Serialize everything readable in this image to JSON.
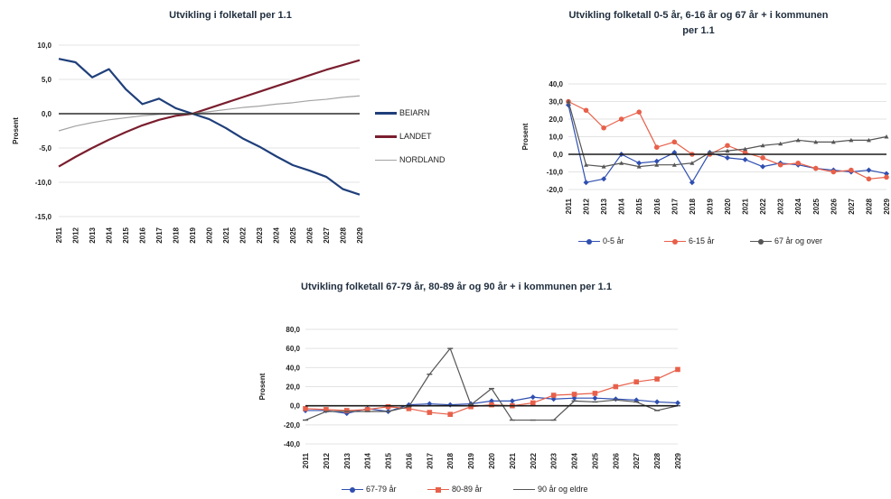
{
  "chart_data": [
    {
      "type": "line",
      "title": "Utvikling i folketall per 1.1",
      "xlabel": "",
      "ylabel": "Prosent",
      "x": [
        "2011",
        "2012",
        "2013",
        "2014",
        "2015",
        "2016",
        "2017",
        "2018",
        "2019",
        "2020",
        "2021",
        "2022",
        "2023",
        "2024",
        "2025",
        "2026",
        "2027",
        "2028",
        "2029"
      ],
      "yticks": [
        "10,0",
        "5,0",
        "0,0",
        "-5,0",
        "-10,0",
        "-15,0"
      ],
      "ylim": [
        -15,
        10
      ],
      "grid": true,
      "legend_position": "right",
      "series": [
        {
          "name": "BEIARN",
          "color": "#1f3f7a",
          "marker": "none",
          "values": [
            8.0,
            7.5,
            5.3,
            6.5,
            3.6,
            1.4,
            2.2,
            0.8,
            0.0,
            -0.8,
            -2.1,
            -3.6,
            -4.8,
            -6.2,
            -7.5,
            -8.3,
            -9.2,
            -11.0,
            -11.8
          ]
        },
        {
          "name": "LANDET",
          "color": "#7a1e2e",
          "marker": "none",
          "values": [
            -7.7,
            -6.3,
            -5.0,
            -3.8,
            -2.7,
            -1.7,
            -0.9,
            -0.3,
            0.0,
            0.8,
            1.6,
            2.4,
            3.2,
            4.0,
            4.8,
            5.6,
            6.4,
            7.1,
            7.8
          ]
        },
        {
          "name": "NORDLAND",
          "color": "#a3a3a3",
          "marker": "none",
          "values": [
            -2.5,
            -1.8,
            -1.3,
            -0.9,
            -0.6,
            -0.3,
            -0.1,
            -0.05,
            0.0,
            0.3,
            0.6,
            0.9,
            1.1,
            1.4,
            1.6,
            1.9,
            2.1,
            2.4,
            2.6
          ]
        },
        {
          "name": "",
          "color": "#2b2b2b",
          "marker": "none",
          "values": [
            0,
            0,
            0,
            0,
            0,
            0,
            0,
            0,
            0,
            0,
            0,
            0,
            0,
            0,
            0,
            0,
            0,
            0,
            0
          ]
        }
      ]
    },
    {
      "type": "line",
      "title": "Utvikling folketall 0-5 år, 6-16 år og 67 år + i kommunen per 1.1",
      "xlabel": "",
      "ylabel": "Prosent",
      "x": [
        "2011",
        "2012",
        "2013",
        "2014",
        "2015",
        "2016",
        "2017",
        "2018",
        "2019",
        "2020",
        "2021",
        "2022",
        "2023",
        "2024",
        "2025",
        "2026",
        "2027",
        "2028",
        "2029"
      ],
      "yticks": [
        "40,0",
        "30,0",
        "20,0",
        "10,0",
        "0,0",
        "-10,0",
        "-20,0"
      ],
      "ylim": [
        -20,
        40
      ],
      "grid": true,
      "legend_position": "bottom",
      "series": [
        {
          "name": "0-5 år",
          "color": "#2f4fb0",
          "marker": "diamond",
          "values": [
            28,
            -16,
            -14,
            0,
            -5,
            -4,
            1,
            -16,
            1,
            -2,
            -3,
            -7,
            -5,
            -6,
            -8,
            -9,
            -10,
            -9,
            -11
          ]
        },
        {
          "name": "6-15 år",
          "color": "#e8604a",
          "marker": "circle",
          "values": [
            30,
            25,
            15,
            20,
            24,
            4,
            7,
            0,
            0,
            5,
            1,
            -2,
            -6,
            -5,
            -8,
            -10,
            -9,
            -14,
            -13
          ]
        },
        {
          "name": "67 år og over",
          "color": "#555555",
          "marker": "triangle",
          "values": [
            30,
            -6,
            -7,
            -5,
            -7,
            -6,
            -6,
            -5,
            1,
            2,
            3,
            5,
            6,
            8,
            7,
            7,
            8,
            8,
            10
          ]
        },
        {
          "name": "",
          "color": "#1a1a1a",
          "marker": "none",
          "values": [
            0,
            0,
            0,
            0,
            0,
            0,
            0,
            0,
            0,
            0,
            0,
            0,
            0,
            0,
            0,
            0,
            0,
            0,
            0
          ]
        }
      ]
    },
    {
      "type": "line",
      "title": "Utvikling folketall 67-79 år, 80-89 år og 90 år + i kommunen per 1.1",
      "xlabel": "",
      "ylabel": "Prosent",
      "x": [
        "2011",
        "2012",
        "2013",
        "2014",
        "2015",
        "2016",
        "2017",
        "2018",
        "2019",
        "2020",
        "2021",
        "2022",
        "2023",
        "2024",
        "2025",
        "2026",
        "2027",
        "2028",
        "2029"
      ],
      "yticks": [
        "80,0",
        "60,0",
        "40,0",
        "20,0",
        "0,0",
        "-20,0",
        "-40,0"
      ],
      "ylim": [
        -40,
        80
      ],
      "grid": true,
      "legend_position": "bottom",
      "series": [
        {
          "name": "67-79 år",
          "color": "#2f4fb0",
          "marker": "diamond",
          "values": [
            -5,
            -5,
            -8,
            -3,
            -6,
            1,
            2,
            1,
            2,
            5,
            5,
            9,
            7,
            8,
            8,
            7,
            6,
            4,
            3
          ]
        },
        {
          "name": "80-89 år",
          "color": "#e8604a",
          "marker": "square",
          "values": [
            -3,
            -4,
            -5,
            -4,
            -1,
            -3,
            -7,
            -9,
            -1,
            1,
            0,
            3,
            11,
            12,
            13,
            20,
            25,
            28,
            38
          ]
        },
        {
          "name": "90 år og eldre",
          "color": "#555555",
          "marker": "dash",
          "values": [
            -15,
            -6,
            -6,
            -6,
            -6,
            -1,
            33,
            60,
            1,
            18,
            -15,
            -15,
            -15,
            5,
            4,
            6,
            4,
            -5,
            0
          ]
        },
        {
          "name": "",
          "color": "#1a1a1a",
          "marker": "none",
          "values": [
            0,
            0,
            0,
            0,
            0,
            0,
            0,
            0,
            0,
            0,
            0,
            0,
            0,
            0,
            0,
            0,
            0,
            0,
            0
          ]
        }
      ]
    }
  ]
}
